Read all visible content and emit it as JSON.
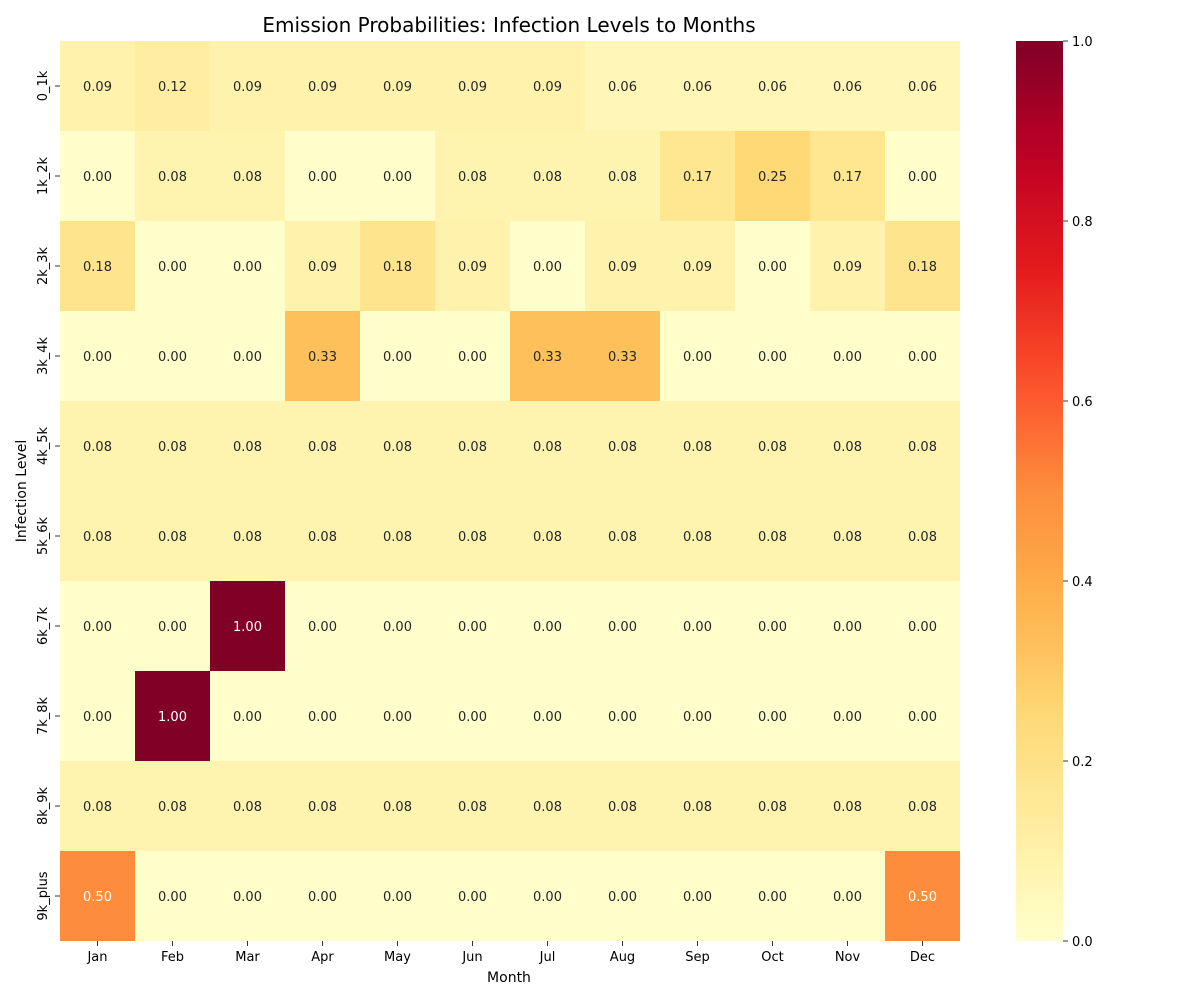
{
  "chart_data": {
    "type": "heatmap",
    "title": "Emission Probabilities: Infection Levels to Months",
    "xlabel": "Month",
    "ylabel": "Infection Level",
    "x_categories": [
      "Jan",
      "Feb",
      "Mar",
      "Apr",
      "May",
      "Jun",
      "Jul",
      "Aug",
      "Sep",
      "Oct",
      "Nov",
      "Dec"
    ],
    "y_categories": [
      "0_1k",
      "1k_2k",
      "2k_3k",
      "3k_4k",
      "4k_5k",
      "5k_6k",
      "6k_7k",
      "7k_8k",
      "8k_9k",
      "9k_plus"
    ],
    "values": [
      [
        0.09,
        0.12,
        0.09,
        0.09,
        0.09,
        0.09,
        0.09,
        0.06,
        0.06,
        0.06,
        0.06,
        0.06
      ],
      [
        0.0,
        0.08,
        0.08,
        0.0,
        0.0,
        0.08,
        0.08,
        0.08,
        0.17,
        0.25,
        0.17,
        0.0
      ],
      [
        0.18,
        0.0,
        0.0,
        0.09,
        0.18,
        0.09,
        0.0,
        0.09,
        0.09,
        0.0,
        0.09,
        0.18
      ],
      [
        0.0,
        0.0,
        0.0,
        0.33,
        0.0,
        0.0,
        0.33,
        0.33,
        0.0,
        0.0,
        0.0,
        0.0
      ],
      [
        0.08,
        0.08,
        0.08,
        0.08,
        0.08,
        0.08,
        0.08,
        0.08,
        0.08,
        0.08,
        0.08,
        0.08
      ],
      [
        0.08,
        0.08,
        0.08,
        0.08,
        0.08,
        0.08,
        0.08,
        0.08,
        0.08,
        0.08,
        0.08,
        0.08
      ],
      [
        0.0,
        0.0,
        1.0,
        0.0,
        0.0,
        0.0,
        0.0,
        0.0,
        0.0,
        0.0,
        0.0,
        0.0
      ],
      [
        0.0,
        1.0,
        0.0,
        0.0,
        0.0,
        0.0,
        0.0,
        0.0,
        0.0,
        0.0,
        0.0,
        0.0
      ],
      [
        0.08,
        0.08,
        0.08,
        0.08,
        0.08,
        0.08,
        0.08,
        0.08,
        0.08,
        0.08,
        0.08,
        0.08
      ],
      [
        0.5,
        0.0,
        0.0,
        0.0,
        0.0,
        0.0,
        0.0,
        0.0,
        0.0,
        0.0,
        0.0,
        0.5
      ]
    ],
    "value_format": "0.00",
    "colormap": "YlOrRd",
    "colorbar": {
      "range": [
        0.0,
        1.0
      ],
      "ticks": [
        0.0,
        0.2,
        0.4,
        0.6,
        0.8,
        1.0
      ],
      "tick_labels": [
        "0.0",
        "0.2",
        "0.4",
        "0.6",
        "0.8",
        "1.0"
      ],
      "placement": "right"
    },
    "grid": false
  }
}
